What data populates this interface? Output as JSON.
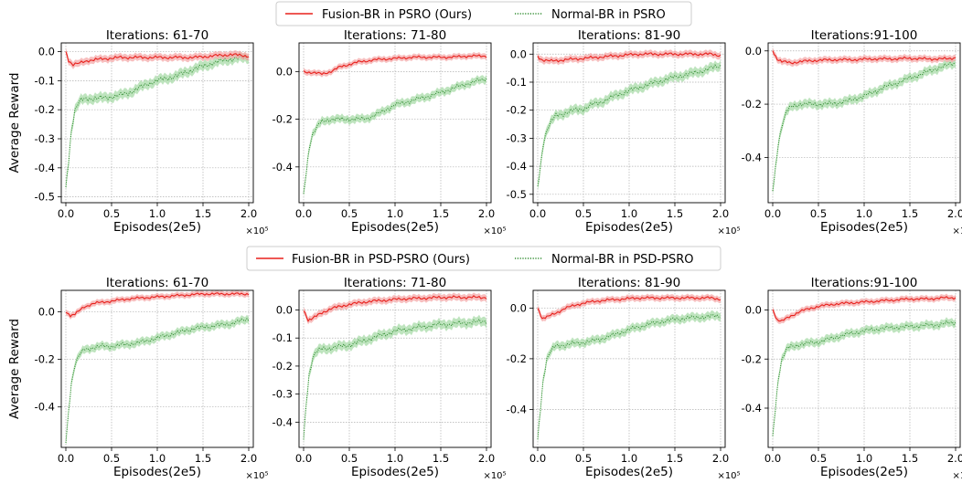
{
  "colors": {
    "fusion": "#e8201c",
    "fusion_band": "#f4a8a8",
    "normal": "#2e8b2e",
    "normal_band": "#a8dba8"
  },
  "legends": [
    {
      "fusion": "Fusion-BR in PSRO (Ours)",
      "normal": "Normal-BR in PSRO"
    },
    {
      "fusion": "Fusion-BR in PSD-PSRO (Ours)",
      "normal": "Normal-BR in PSD-PSRO"
    }
  ],
  "chart_data": [
    {
      "type": "line",
      "row": 0,
      "title": "Iterations: 61-70",
      "xlabel": "Episodes(2e5)",
      "ylabel": "Average Reward",
      "x_exponent": "×10⁵",
      "xlim": [
        -0.05,
        2.05
      ],
      "ylim": [
        -0.52,
        0.03
      ],
      "xticks": [
        0.0,
        0.5,
        1.0,
        1.5,
        2.0
      ],
      "yticks": [
        -0.5,
        -0.4,
        -0.3,
        -0.2,
        -0.1,
        0.0
      ],
      "ytick_labels": [
        "-0.5",
        "-0.4",
        "-0.3",
        "-0.2",
        "-0.1",
        "0.0"
      ],
      "grid": true,
      "series": [
        {
          "name": "Fusion-BR in PSRO (Ours)",
          "style": "solid",
          "x": [
            0,
            0.03,
            0.08,
            0.15,
            0.25,
            0.4,
            0.6,
            0.8,
            1.0,
            1.2,
            1.4,
            1.6,
            1.8,
            2.0
          ],
          "y": [
            0.0,
            -0.03,
            -0.045,
            -0.04,
            -0.03,
            -0.025,
            -0.02,
            -0.02,
            -0.02,
            -0.02,
            -0.02,
            -0.015,
            -0.01,
            -0.015
          ]
        },
        {
          "name": "Normal-BR in PSRO",
          "style": "dotted",
          "x": [
            0,
            0.03,
            0.06,
            0.1,
            0.15,
            0.2,
            0.3,
            0.4,
            0.5,
            0.6,
            0.7,
            0.8,
            0.9,
            1.0,
            1.2,
            1.4,
            1.6,
            1.8,
            2.0
          ],
          "y": [
            -0.47,
            -0.38,
            -0.27,
            -0.2,
            -0.17,
            -0.165,
            -0.16,
            -0.16,
            -0.155,
            -0.15,
            -0.14,
            -0.125,
            -0.11,
            -0.1,
            -0.085,
            -0.06,
            -0.04,
            -0.025,
            -0.02
          ]
        }
      ]
    },
    {
      "type": "line",
      "row": 0,
      "title": "Iterations: 71-80",
      "xlabel": "Episodes(2e5)",
      "ylabel": "",
      "x_exponent": "×10⁵",
      "xlim": [
        -0.05,
        2.05
      ],
      "ylim": [
        -0.55,
        0.12
      ],
      "xticks": [
        0.0,
        0.5,
        1.0,
        1.5,
        2.0
      ],
      "yticks": [
        -0.4,
        -0.2,
        0.0
      ],
      "ytick_labels": [
        "-0.4",
        "-0.2",
        "0.0"
      ],
      "grid": true,
      "series": [
        {
          "name": "Fusion-BR in PSRO (Ours)",
          "style": "solid",
          "x": [
            0,
            0.1,
            0.2,
            0.3,
            0.4,
            0.5,
            0.6,
            0.8,
            1.0,
            1.2,
            1.4,
            1.6,
            1.8,
            2.0
          ],
          "y": [
            0.0,
            -0.005,
            -0.01,
            0.0,
            0.02,
            0.03,
            0.04,
            0.05,
            0.055,
            0.06,
            0.06,
            0.06,
            0.065,
            0.065
          ]
        },
        {
          "name": "Normal-BR in PSRO",
          "style": "dotted",
          "x": [
            0,
            0.03,
            0.06,
            0.1,
            0.15,
            0.2,
            0.3,
            0.4,
            0.5,
            0.6,
            0.7,
            0.8,
            0.9,
            1.0,
            1.1,
            1.2,
            1.4,
            1.6,
            1.8,
            2.0
          ],
          "y": [
            -0.52,
            -0.42,
            -0.32,
            -0.26,
            -0.23,
            -0.21,
            -0.2,
            -0.2,
            -0.2,
            -0.2,
            -0.195,
            -0.18,
            -0.16,
            -0.14,
            -0.13,
            -0.12,
            -0.1,
            -0.075,
            -0.05,
            -0.03
          ]
        }
      ]
    },
    {
      "type": "line",
      "row": 0,
      "title": "Iterations: 81-90",
      "xlabel": "Episodes(2e5)",
      "ylabel": "",
      "x_exponent": "×10⁵",
      "xlim": [
        -0.05,
        2.05
      ],
      "ylim": [
        -0.53,
        0.04
      ],
      "xticks": [
        0.0,
        0.5,
        1.0,
        1.5,
        2.0
      ],
      "yticks": [
        -0.5,
        -0.4,
        -0.3,
        -0.2,
        -0.1,
        0.0
      ],
      "ytick_labels": [
        "-0.5",
        "-0.4",
        "-0.3",
        "-0.2",
        "-0.1",
        "0.0"
      ],
      "grid": true,
      "series": [
        {
          "name": "Fusion-BR in PSRO (Ours)",
          "style": "solid",
          "x": [
            0,
            0.05,
            0.15,
            0.3,
            0.5,
            0.7,
            0.9,
            1.1,
            1.3,
            1.5,
            1.7,
            1.9,
            2.0
          ],
          "y": [
            -0.01,
            -0.02,
            -0.025,
            -0.02,
            -0.015,
            -0.01,
            -0.005,
            0.0,
            0.0,
            0.0,
            0.0,
            0.0,
            -0.005
          ]
        },
        {
          "name": "Normal-BR in PSRO",
          "style": "dotted",
          "x": [
            0,
            0.03,
            0.06,
            0.1,
            0.15,
            0.2,
            0.3,
            0.4,
            0.5,
            0.6,
            0.7,
            0.8,
            1.0,
            1.2,
            1.4,
            1.6,
            1.8,
            2.0
          ],
          "y": [
            -0.48,
            -0.4,
            -0.32,
            -0.27,
            -0.24,
            -0.22,
            -0.21,
            -0.2,
            -0.195,
            -0.18,
            -0.17,
            -0.155,
            -0.13,
            -0.11,
            -0.09,
            -0.075,
            -0.06,
            -0.04
          ]
        }
      ]
    },
    {
      "type": "line",
      "row": 0,
      "title": "Iterations:91-100",
      "xlabel": "Episodes(2e5)",
      "ylabel": "",
      "x_exponent": "×10⁵",
      "xlim": [
        -0.05,
        2.05
      ],
      "ylim": [
        -0.57,
        0.03
      ],
      "xticks": [
        0.0,
        0.5,
        1.0,
        1.5,
        2.0
      ],
      "yticks": [
        -0.4,
        -0.2,
        0.0
      ],
      "ytick_labels": [
        "-0.4",
        "-0.2",
        "0.0"
      ],
      "grid": true,
      "series": [
        {
          "name": "Fusion-BR in PSRO (Ours)",
          "style": "solid",
          "x": [
            0,
            0.05,
            0.1,
            0.2,
            0.3,
            0.5,
            0.7,
            0.9,
            1.1,
            1.3,
            1.5,
            1.7,
            1.9,
            2.0
          ],
          "y": [
            0.0,
            -0.03,
            -0.04,
            -0.045,
            -0.04,
            -0.035,
            -0.033,
            -0.033,
            -0.03,
            -0.03,
            -0.028,
            -0.03,
            -0.03,
            -0.025
          ]
        },
        {
          "name": "Normal-BR in PSRO",
          "style": "dotted",
          "x": [
            0,
            0.03,
            0.06,
            0.1,
            0.15,
            0.2,
            0.3,
            0.4,
            0.5,
            0.6,
            0.7,
            0.8,
            1.0,
            1.2,
            1.4,
            1.6,
            1.8,
            2.0
          ],
          "y": [
            -0.53,
            -0.44,
            -0.35,
            -0.28,
            -0.23,
            -0.21,
            -0.2,
            -0.2,
            -0.2,
            -0.2,
            -0.195,
            -0.19,
            -0.17,
            -0.14,
            -0.115,
            -0.09,
            -0.065,
            -0.045
          ]
        }
      ]
    },
    {
      "type": "line",
      "row": 1,
      "title": "Iterations: 61-70",
      "xlabel": "Episodes(2e5)",
      "ylabel": "Average Reward",
      "x_exponent": "×10⁵",
      "xlim": [
        -0.05,
        2.05
      ],
      "ylim": [
        -0.57,
        0.09
      ],
      "xticks": [
        0.0,
        0.5,
        1.0,
        1.5,
        2.0
      ],
      "yticks": [
        -0.4,
        -0.2,
        0.0
      ],
      "ytick_labels": [
        "-0.4",
        "-0.2",
        "0.0"
      ],
      "grid": true,
      "series": [
        {
          "name": "Fusion-BR in PSD-PSRO (Ours)",
          "style": "solid",
          "x": [
            0,
            0.05,
            0.1,
            0.2,
            0.3,
            0.5,
            0.7,
            0.9,
            1.1,
            1.3,
            1.5,
            1.7,
            1.9,
            2.0
          ],
          "y": [
            0.0,
            -0.015,
            -0.01,
            0.02,
            0.035,
            0.045,
            0.055,
            0.06,
            0.065,
            0.07,
            0.075,
            0.075,
            0.075,
            0.075
          ]
        },
        {
          "name": "Normal-BR in PSD-PSRO",
          "style": "dotted",
          "x": [
            0,
            0.03,
            0.06,
            0.1,
            0.15,
            0.2,
            0.3,
            0.4,
            0.5,
            0.6,
            0.7,
            0.8,
            1.0,
            1.2,
            1.4,
            1.6,
            1.8,
            2.0
          ],
          "y": [
            -0.55,
            -0.42,
            -0.3,
            -0.22,
            -0.18,
            -0.16,
            -0.15,
            -0.145,
            -0.145,
            -0.14,
            -0.135,
            -0.13,
            -0.11,
            -0.09,
            -0.07,
            -0.06,
            -0.05,
            -0.03
          ]
        }
      ]
    },
    {
      "type": "line",
      "row": 1,
      "title": "Iterations: 71-80",
      "xlabel": "Episodes(2e5)",
      "ylabel": "",
      "x_exponent": "×10⁵",
      "xlim": [
        -0.05,
        2.05
      ],
      "ylim": [
        -0.49,
        0.07
      ],
      "xticks": [
        0.0,
        0.5,
        1.0,
        1.5,
        2.0
      ],
      "yticks": [
        -0.4,
        -0.3,
        -0.2,
        -0.1,
        0.0
      ],
      "ytick_labels": [
        "-0.4",
        "-0.3",
        "-0.2",
        "-0.1",
        "0.0"
      ],
      "grid": true,
      "series": [
        {
          "name": "Fusion-BR in PSD-PSRO (Ours)",
          "style": "solid",
          "x": [
            0,
            0.05,
            0.1,
            0.2,
            0.3,
            0.5,
            0.7,
            0.9,
            1.1,
            1.3,
            1.5,
            1.7,
            1.9,
            2.0
          ],
          "y": [
            0.0,
            -0.035,
            -0.03,
            -0.01,
            0.005,
            0.02,
            0.03,
            0.035,
            0.04,
            0.042,
            0.045,
            0.045,
            0.045,
            0.045
          ]
        },
        {
          "name": "Normal-BR in PSD-PSRO",
          "style": "dotted",
          "x": [
            0,
            0.03,
            0.06,
            0.1,
            0.15,
            0.2,
            0.3,
            0.4,
            0.5,
            0.6,
            0.7,
            0.8,
            1.0,
            1.2,
            1.4,
            1.6,
            1.8,
            2.0
          ],
          "y": [
            -0.46,
            -0.33,
            -0.23,
            -0.17,
            -0.145,
            -0.14,
            -0.135,
            -0.13,
            -0.125,
            -0.115,
            -0.105,
            -0.095,
            -0.075,
            -0.065,
            -0.055,
            -0.05,
            -0.045,
            -0.04
          ]
        }
      ]
    },
    {
      "type": "line",
      "row": 1,
      "title": "Iterations: 81-90",
      "xlabel": "Episodes(2e5)",
      "ylabel": "",
      "x_exponent": "×10⁵",
      "xlim": [
        -0.05,
        2.05
      ],
      "ylim": [
        -0.55,
        0.07
      ],
      "xticks": [
        0.0,
        0.5,
        1.0,
        1.5,
        2.0
      ],
      "yticks": [
        -0.4,
        -0.2,
        0.0
      ],
      "ytick_labels": [
        "-0.4",
        "-0.2",
        "0.0"
      ],
      "grid": true,
      "series": [
        {
          "name": "Fusion-BR in PSD-PSRO (Ours)",
          "style": "solid",
          "x": [
            0,
            0.05,
            0.1,
            0.2,
            0.3,
            0.5,
            0.7,
            0.9,
            1.1,
            1.3,
            1.5,
            1.7,
            1.9,
            2.0
          ],
          "y": [
            0.0,
            -0.04,
            -0.035,
            -0.02,
            0.0,
            0.02,
            0.03,
            0.035,
            0.04,
            0.04,
            0.04,
            0.04,
            0.04,
            0.035
          ]
        },
        {
          "name": "Normal-BR in PSD-PSRO",
          "style": "dotted",
          "x": [
            0,
            0.03,
            0.06,
            0.1,
            0.15,
            0.2,
            0.3,
            0.4,
            0.5,
            0.6,
            0.7,
            0.8,
            1.0,
            1.2,
            1.4,
            1.6,
            1.8,
            2.0
          ],
          "y": [
            -0.52,
            -0.4,
            -0.28,
            -0.2,
            -0.165,
            -0.15,
            -0.145,
            -0.14,
            -0.135,
            -0.13,
            -0.12,
            -0.11,
            -0.085,
            -0.065,
            -0.05,
            -0.04,
            -0.035,
            -0.03
          ]
        }
      ]
    },
    {
      "type": "line",
      "row": 1,
      "title": "Iterations:91-100",
      "xlabel": "Episodes(2e5)",
      "ylabel": "",
      "x_exponent": "×10⁵",
      "xlim": [
        -0.05,
        2.05
      ],
      "ylim": [
        -0.56,
        0.08
      ],
      "xticks": [
        0.0,
        0.5,
        1.0,
        1.5,
        2.0
      ],
      "yticks": [
        -0.4,
        -0.2,
        0.0
      ],
      "ytick_labels": [
        "-0.4",
        "-0.2",
        "0.0"
      ],
      "grid": true,
      "series": [
        {
          "name": "Fusion-BR in PSD-PSRO (Ours)",
          "style": "solid",
          "x": [
            0,
            0.05,
            0.1,
            0.2,
            0.3,
            0.5,
            0.7,
            0.9,
            1.1,
            1.3,
            1.5,
            1.7,
            1.9,
            2.0
          ],
          "y": [
            0.0,
            -0.04,
            -0.045,
            -0.025,
            -0.005,
            0.015,
            0.025,
            0.03,
            0.035,
            0.04,
            0.045,
            0.045,
            0.05,
            0.05
          ]
        },
        {
          "name": "Normal-BR in PSD-PSRO",
          "style": "dotted",
          "x": [
            0,
            0.03,
            0.06,
            0.1,
            0.15,
            0.2,
            0.3,
            0.4,
            0.5,
            0.6,
            0.7,
            0.8,
            1.0,
            1.2,
            1.4,
            1.6,
            1.8,
            2.0
          ],
          "y": [
            -0.52,
            -0.4,
            -0.28,
            -0.2,
            -0.16,
            -0.15,
            -0.14,
            -0.135,
            -0.13,
            -0.12,
            -0.11,
            -0.1,
            -0.085,
            -0.075,
            -0.07,
            -0.065,
            -0.06,
            -0.05
          ]
        }
      ]
    }
  ]
}
